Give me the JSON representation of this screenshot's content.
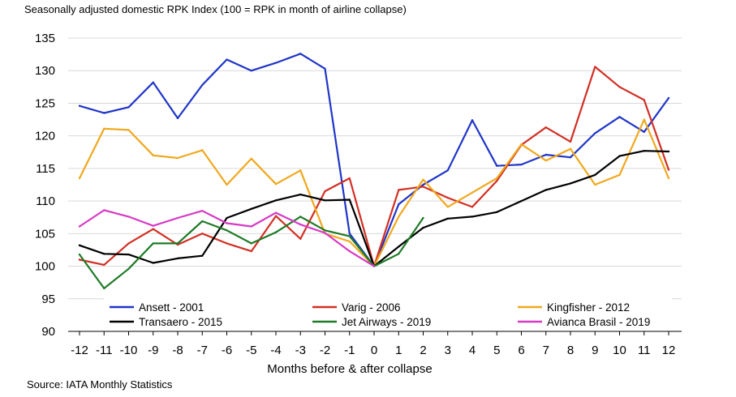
{
  "title": "Seasonally adjusted domestic RPK Index (100 = RPK in month of airline collapse)",
  "source": "Source: IATA Monthly Statistics",
  "chart_data": {
    "type": "line",
    "title": "Seasonally adjusted domestic RPK Index (100 = RPK in month of airline collapse)",
    "xlabel": "Months before & after collapse",
    "ylabel": "",
    "x": [
      -12,
      -11,
      -10,
      -9,
      -8,
      -7,
      -6,
      -5,
      -4,
      -3,
      -2,
      -1,
      0,
      1,
      2,
      3,
      4,
      5,
      6,
      7,
      8,
      9,
      10,
      11,
      12
    ],
    "xlim": [
      -12,
      12
    ],
    "ylim": [
      90,
      135
    ],
    "yticks": [
      90,
      95,
      100,
      105,
      110,
      115,
      120,
      125,
      130,
      135
    ],
    "grid": "horizontal",
    "legend_position": "bottom, inside plot (3 columns)",
    "series": [
      {
        "name": "Ansett - 2001",
        "color": "#1f35c8",
        "values": [
          124.6,
          123.5,
          124.4,
          128.2,
          122.7,
          127.8,
          131.7,
          130.0,
          131.2,
          132.6,
          130.3,
          105.0,
          100.0,
          109.5,
          112.5,
          114.7,
          122.4,
          115.4,
          115.6,
          117.1,
          116.7,
          120.4,
          122.9,
          120.6,
          125.8
        ]
      },
      {
        "name": "Varig - 2006",
        "color": "#d22f24",
        "values": [
          101.0,
          100.2,
          103.5,
          105.7,
          103.3,
          105.0,
          103.5,
          102.3,
          107.7,
          104.2,
          111.5,
          113.5,
          100.0,
          111.7,
          112.2,
          110.5,
          109.1,
          113.1,
          118.6,
          121.3,
          119.1,
          130.6,
          127.5,
          125.5,
          114.8
        ]
      },
      {
        "name": "Kingfisher - 2012",
        "color": "#f0a81e",
        "values": [
          113.5,
          121.1,
          120.9,
          117.0,
          116.6,
          117.8,
          112.5,
          116.5,
          112.6,
          114.7,
          105.0,
          103.8,
          100.0,
          107.6,
          113.3,
          109.1,
          111.3,
          113.5,
          118.7,
          116.2,
          118.0,
          112.5,
          114.0,
          122.5,
          113.5
        ]
      },
      {
        "name": "Transaero - 2015",
        "color": "#000000",
        "values": [
          103.2,
          101.9,
          101.8,
          100.5,
          101.2,
          101.6,
          107.4,
          108.8,
          110.1,
          111.0,
          110.1,
          110.2,
          100.0,
          103.0,
          105.9,
          107.3,
          107.6,
          108.3,
          110.0,
          111.7,
          112.7,
          114.0,
          116.9,
          117.7,
          117.6
        ]
      },
      {
        "name": "Jet Airways - 2019",
        "color": "#1e7a26",
        "values": [
          101.8,
          96.6,
          99.6,
          103.5,
          103.5,
          106.9,
          105.5,
          103.5,
          105.2,
          107.6,
          105.5,
          104.6,
          100.0,
          101.9,
          107.4,
          null,
          null,
          null,
          null,
          null,
          null,
          null,
          null,
          null,
          null
        ]
      },
      {
        "name": "Avianca Brasil - 2019",
        "color": "#d63ac5",
        "values": [
          106.1,
          108.6,
          107.6,
          106.2,
          107.4,
          108.5,
          106.6,
          106.1,
          108.2,
          106.4,
          105.1,
          102.3,
          100.0,
          null,
          null,
          null,
          null,
          null,
          null,
          null,
          null,
          null,
          null,
          null,
          null
        ]
      }
    ]
  }
}
